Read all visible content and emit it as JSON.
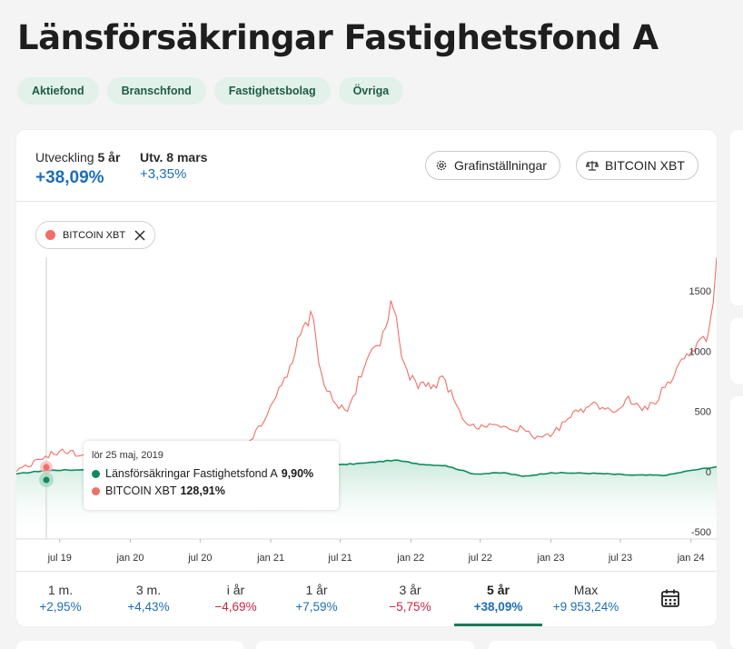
{
  "page": {
    "title": "Länsförsäkringar Fastighetsfond A",
    "tags": [
      "Aktiefond",
      "Branschfond",
      "Fastighetsbolag",
      "Övriga"
    ]
  },
  "performance": {
    "period_label_prefix": "Utveckling",
    "period_label_value": "5 år",
    "period_change": "+38,09%",
    "date_label": "Utv. 8 mars",
    "date_change": "+3,35%"
  },
  "buttons": {
    "settings": "Grafinställningar",
    "compare": "BITCOIN XBT"
  },
  "compare_chip": {
    "label": "BITCOIN XBT"
  },
  "tooltip": {
    "date": "lör 25 maj, 2019",
    "rows": [
      {
        "name": "Länsförsäkringar Fastighetsfond A",
        "value": "9,90%",
        "color": "#0f8a5f"
      },
      {
        "name": "BITCOIN XBT",
        "value": "128,91%",
        "color": "#ee7068"
      }
    ]
  },
  "periods": [
    {
      "label": "1 m.",
      "value": "+2,95%",
      "sign": "pos"
    },
    {
      "label": "3 m.",
      "value": "+4,43%",
      "sign": "pos"
    },
    {
      "label": "i år",
      "value": "−4,69%",
      "sign": "neg"
    },
    {
      "label": "1 år",
      "value": "+7,59%",
      "sign": "pos"
    },
    {
      "label": "3 år",
      "value": "−5,75%",
      "sign": "neg"
    },
    {
      "label": "5 år",
      "value": "+38,09%",
      "sign": "pos",
      "active": true
    },
    {
      "label": "Max",
      "value": "+9 953,24%",
      "sign": "pos"
    }
  ],
  "colors": {
    "fund": "#0f8a5f",
    "bitcoin": "#ee7068",
    "accent": "#1c6eb5",
    "negative": "#c42744"
  },
  "icons": {
    "settings": "gear-icon",
    "compare": "scale-icon",
    "close": "close-icon",
    "calendar": "calendar-icon"
  },
  "chart_data": {
    "type": "line",
    "x_ticks": [
      "jul 19",
      "jan 20",
      "jul 20",
      "jan 21",
      "jul 21",
      "jan 22",
      "jul 22",
      "jan 23",
      "jul 23",
      "jan 24"
    ],
    "y_ticks": [
      1500,
      1000,
      500,
      0,
      -500
    ],
    "ylim": [
      -560,
      1780
    ],
    "grid": false,
    "series": [
      {
        "name": "BITCOIN XBT",
        "color": "#ee7068",
        "points": [
          [
            "2019-03-10",
            0
          ],
          [
            "2019-04-10",
            40
          ],
          [
            "2019-05-25",
            129
          ],
          [
            "2019-07-01",
            170
          ],
          [
            "2019-09-01",
            140
          ],
          [
            "2019-11-01",
            110
          ],
          [
            "2020-01-01",
            100
          ],
          [
            "2020-02-15",
            150
          ],
          [
            "2020-03-15",
            60
          ],
          [
            "2020-05-01",
            110
          ],
          [
            "2020-07-01",
            130
          ],
          [
            "2020-09-01",
            140
          ],
          [
            "2020-11-01",
            230
          ],
          [
            "2020-12-15",
            420
          ],
          [
            "2021-01-15",
            620
          ],
          [
            "2021-02-20",
            880
          ],
          [
            "2021-04-15",
            1330
          ],
          [
            "2021-05-20",
            720
          ],
          [
            "2021-06-20",
            560
          ],
          [
            "2021-07-20",
            500
          ],
          [
            "2021-09-01",
            860
          ],
          [
            "2021-10-20",
            1160
          ],
          [
            "2021-11-10",
            1420
          ],
          [
            "2021-12-15",
            900
          ],
          [
            "2022-01-20",
            690
          ],
          [
            "2022-03-01",
            720
          ],
          [
            "2022-04-01",
            760
          ],
          [
            "2022-05-15",
            440
          ],
          [
            "2022-06-20",
            360
          ],
          [
            "2022-08-01",
            390
          ],
          [
            "2022-09-15",
            350
          ],
          [
            "2022-10-20",
            360
          ],
          [
            "2022-11-20",
            270
          ],
          [
            "2022-12-31",
            290
          ],
          [
            "2023-02-15",
            440
          ],
          [
            "2023-03-20",
            520
          ],
          [
            "2023-05-01",
            560
          ],
          [
            "2023-06-20",
            500
          ],
          [
            "2023-07-15",
            600
          ],
          [
            "2023-08-20",
            540
          ],
          [
            "2023-10-01",
            560
          ],
          [
            "2023-10-25",
            700
          ],
          [
            "2023-12-01",
            900
          ],
          [
            "2024-01-10",
            1000
          ],
          [
            "2024-02-10",
            1080
          ],
          [
            "2024-02-28",
            1400
          ],
          [
            "2024-03-08",
            1780
          ]
        ]
      },
      {
        "name": "Länsförsäkringar Fastighetsfond A",
        "color": "#0f8a5f",
        "points": [
          [
            "2019-03-10",
            -20
          ],
          [
            "2019-05-25",
            10
          ],
          [
            "2019-09-01",
            15
          ],
          [
            "2019-12-01",
            25
          ],
          [
            "2020-02-15",
            35
          ],
          [
            "2020-03-25",
            -10
          ],
          [
            "2020-07-01",
            5
          ],
          [
            "2020-11-01",
            10
          ],
          [
            "2021-02-01",
            25
          ],
          [
            "2021-06-01",
            50
          ],
          [
            "2021-09-01",
            70
          ],
          [
            "2021-11-20",
            95
          ],
          [
            "2022-02-01",
            60
          ],
          [
            "2022-04-01",
            50
          ],
          [
            "2022-06-15",
            -20
          ],
          [
            "2022-09-01",
            -10
          ],
          [
            "2022-10-20",
            -40
          ],
          [
            "2023-01-01",
            -10
          ],
          [
            "2023-05-01",
            -15
          ],
          [
            "2023-08-01",
            -30
          ],
          [
            "2023-10-30",
            -30
          ],
          [
            "2024-01-01",
            10
          ],
          [
            "2024-03-08",
            40
          ]
        ]
      }
    ]
  }
}
